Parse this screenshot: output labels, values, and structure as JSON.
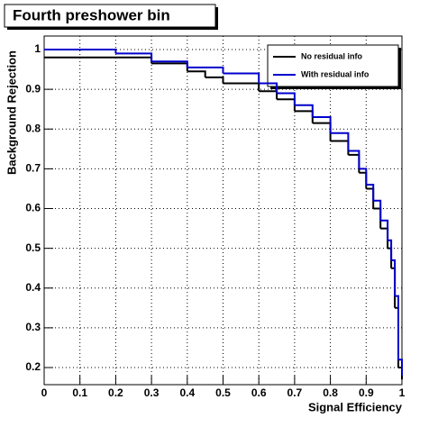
{
  "chart_data": {
    "type": "step",
    "title": "Fourth preshower bin",
    "xlabel": "Signal Efficiency",
    "ylabel": "Background Rejection",
    "xlim": [
      0,
      1
    ],
    "ylim": [
      0.157,
      1.034
    ],
    "xticks": [
      0,
      0.1,
      0.2,
      0.3,
      0.4,
      0.5,
      0.6,
      0.7,
      0.8,
      0.9,
      1
    ],
    "yticks": [
      0.2,
      0.3,
      0.4,
      0.5,
      0.6,
      0.7,
      0.8,
      0.9,
      1
    ],
    "grid": true,
    "legend": "upper right",
    "series": [
      {
        "name": "No residual info",
        "color": "#000000",
        "x": [
          0,
          0.25,
          0.3,
          0.4,
          0.45,
          0.5,
          0.6,
          0.65,
          0.7,
          0.75,
          0.8,
          0.85,
          0.88,
          0.9,
          0.92,
          0.94,
          0.96,
          0.97,
          0.98,
          0.99,
          1
        ],
        "values": [
          0.98,
          0.98,
          0.965,
          0.945,
          0.93,
          0.915,
          0.895,
          0.875,
          0.845,
          0.815,
          0.77,
          0.735,
          0.69,
          0.65,
          0.6,
          0.55,
          0.5,
          0.45,
          0.35,
          0.2,
          0.17
        ]
      },
      {
        "name": "With residual info",
        "color": "#0000cc",
        "x": [
          0,
          0.1,
          0.2,
          0.3,
          0.4,
          0.5,
          0.6,
          0.65,
          0.7,
          0.75,
          0.8,
          0.85,
          0.88,
          0.9,
          0.92,
          0.94,
          0.96,
          0.97,
          0.98,
          0.99,
          1
        ],
        "values": [
          1.0,
          1.0,
          0.99,
          0.97,
          0.955,
          0.94,
          0.915,
          0.89,
          0.86,
          0.83,
          0.79,
          0.745,
          0.7,
          0.66,
          0.62,
          0.57,
          0.52,
          0.47,
          0.38,
          0.22,
          0.18
        ]
      }
    ]
  }
}
